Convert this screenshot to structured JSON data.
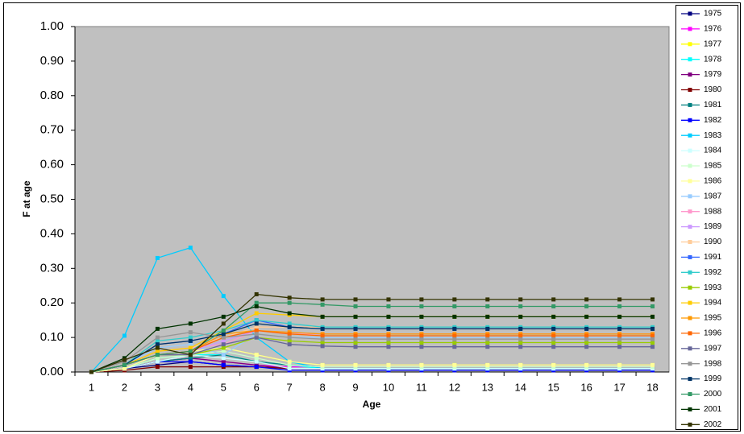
{
  "chart_data": {
    "type": "line",
    "x_label": "Age",
    "y_label": "F at age",
    "categories": [
      "1",
      "2",
      "3",
      "4",
      "5",
      "6",
      "7",
      "8",
      "9",
      "10",
      "11",
      "12",
      "13",
      "14",
      "15",
      "16",
      "17",
      "18"
    ],
    "ylim": [
      0,
      1
    ],
    "yticks": [
      {
        "value": 0,
        "label": "0.00"
      },
      {
        "value": 0.1,
        "label": "0.10"
      },
      {
        "value": 0.2,
        "label": "0.20"
      },
      {
        "value": 0.3,
        "label": "0.30"
      },
      {
        "value": 0.4,
        "label": "0.40"
      },
      {
        "value": 0.5,
        "label": "0.50"
      },
      {
        "value": 0.6,
        "label": "0.60"
      },
      {
        "value": 0.7,
        "label": "0.70"
      },
      {
        "value": 0.8,
        "label": "0.80"
      },
      {
        "value": 0.9,
        "label": "0.90"
      },
      {
        "value": 1,
        "label": "1.00"
      }
    ],
    "grid": false,
    "legend": "right",
    "series": [
      {
        "name": "1975",
        "color": "#000080",
        "values": [
          0,
          0.01,
          0.02,
          0.03,
          0.02,
          0.015,
          0.01,
          0.01,
          0.01,
          0.01,
          0.01,
          0.01,
          0.01,
          0.01,
          0.01,
          0.01,
          0.01,
          0.01
        ]
      },
      {
        "name": "1976",
        "color": "#ff00ff",
        "values": [
          0,
          0.01,
          0.03,
          0.04,
          0.03,
          0.02,
          0.015,
          0.015,
          0.015,
          0.015,
          0.015,
          0.015,
          0.015,
          0.015,
          0.015,
          0.015,
          0.015,
          0.015
        ]
      },
      {
        "name": "1977",
        "color": "#ffff00",
        "values": [
          0,
          0.01,
          0.04,
          0.05,
          0.07,
          0.05,
          0.03,
          0.02,
          0.02,
          0.02,
          0.02,
          0.02,
          0.02,
          0.02,
          0.02,
          0.02,
          0.02,
          0.02
        ]
      },
      {
        "name": "1978",
        "color": "#00ffff",
        "values": [
          0,
          0.01,
          0.04,
          0.05,
          0.05,
          0.03,
          0.02,
          0.01,
          0.01,
          0.01,
          0.01,
          0.01,
          0.01,
          0.01,
          0.01,
          0.01,
          0.01,
          0.01
        ]
      },
      {
        "name": "1979",
        "color": "#800080",
        "values": [
          0,
          0.01,
          0.03,
          0.04,
          0.03,
          0.02,
          0.01,
          0.01,
          0.01,
          0.01,
          0.01,
          0.01,
          0.01,
          0.01,
          0.01,
          0.01,
          0.01,
          0.01
        ]
      },
      {
        "name": "1980",
        "color": "#800000",
        "values": [
          0,
          0.005,
          0.015,
          0.015,
          0.015,
          0.015,
          0.01,
          0.01,
          0.01,
          0.01,
          0.01,
          0.01,
          0.01,
          0.01,
          0.01,
          0.01,
          0.01,
          0.01
        ]
      },
      {
        "name": "1981",
        "color": "#008080",
        "values": [
          0,
          0.01,
          0.03,
          0.04,
          0.05,
          0.03,
          0.02,
          0.015,
          0.015,
          0.015,
          0.015,
          0.015,
          0.015,
          0.015,
          0.015,
          0.015,
          0.015,
          0.015
        ]
      },
      {
        "name": "1982",
        "color": "#0000ff",
        "values": [
          0,
          0.01,
          0.03,
          0.03,
          0.02,
          0.015,
          0.005,
          0.005,
          0.005,
          0.005,
          0.005,
          0.005,
          0.005,
          0.005,
          0.005,
          0.005,
          0.005,
          0.005
        ]
      },
      {
        "name": "1983",
        "color": "#00ccff",
        "values": [
          0,
          0.105,
          0.33,
          0.36,
          0.22,
          0.1,
          0.03,
          0.01,
          0.01,
          0.01,
          0.01,
          0.01,
          0.01,
          0.01,
          0.01,
          0.01,
          0.01,
          0.01
        ]
      },
      {
        "name": "1984",
        "color": "#ccffff",
        "values": [
          0,
          0.01,
          0.03,
          0.05,
          0.04,
          0.03,
          0.01,
          0.01,
          0.01,
          0.01,
          0.01,
          0.01,
          0.01,
          0.01,
          0.01,
          0.01,
          0.01,
          0.01
        ]
      },
      {
        "name": "1985",
        "color": "#ccffcc",
        "values": [
          0,
          0.01,
          0.04,
          0.05,
          0.06,
          0.04,
          0.02,
          0.015,
          0.015,
          0.015,
          0.015,
          0.015,
          0.015,
          0.015,
          0.015,
          0.015,
          0.015,
          0.015
        ]
      },
      {
        "name": "1986",
        "color": "#ffff99",
        "values": [
          0,
          0.01,
          0.05,
          0.06,
          0.07,
          0.05,
          0.03,
          0.02,
          0.02,
          0.02,
          0.02,
          0.02,
          0.02,
          0.02,
          0.02,
          0.02,
          0.02,
          0.02
        ]
      },
      {
        "name": "1987",
        "color": "#99ccff",
        "values": [
          0,
          0.02,
          0.07,
          0.08,
          0.05,
          0.11,
          0.1,
          0.1,
          0.1,
          0.1,
          0.1,
          0.1,
          0.1,
          0.1,
          0.1,
          0.1,
          0.1,
          0.1
        ]
      },
      {
        "name": "1988",
        "color": "#ff99cc",
        "values": [
          0,
          0.02,
          0.06,
          0.07,
          0.08,
          0.12,
          0.11,
          0.11,
          0.11,
          0.11,
          0.11,
          0.11,
          0.11,
          0.11,
          0.11,
          0.11,
          0.11,
          0.11
        ]
      },
      {
        "name": "1989",
        "color": "#cc99ff",
        "values": [
          0,
          0.02,
          0.05,
          0.06,
          0.09,
          0.12,
          0.115,
          0.11,
          0.11,
          0.11,
          0.11,
          0.11,
          0.11,
          0.11,
          0.11,
          0.11,
          0.11,
          0.11
        ]
      },
      {
        "name": "1990",
        "color": "#ffcc99",
        "values": [
          0,
          0.02,
          0.06,
          0.07,
          0.1,
          0.13,
          0.13,
          0.13,
          0.13,
          0.13,
          0.13,
          0.13,
          0.13,
          0.13,
          0.13,
          0.13,
          0.13,
          0.13
        ]
      },
      {
        "name": "1991",
        "color": "#3366ff",
        "values": [
          0,
          0.02,
          0.08,
          0.09,
          0.11,
          0.15,
          0.13,
          0.125,
          0.125,
          0.125,
          0.125,
          0.125,
          0.125,
          0.125,
          0.125,
          0.125,
          0.125,
          0.125
        ]
      },
      {
        "name": "1992",
        "color": "#33cccc",
        "values": [
          0,
          0.02,
          0.09,
          0.1,
          0.12,
          0.15,
          0.14,
          0.13,
          0.13,
          0.13,
          0.13,
          0.13,
          0.13,
          0.13,
          0.13,
          0.13,
          0.13,
          0.13
        ]
      },
      {
        "name": "1993",
        "color": "#99cc00",
        "values": [
          0,
          0.02,
          0.05,
          0.05,
          0.07,
          0.1,
          0.09,
          0.085,
          0.085,
          0.085,
          0.085,
          0.085,
          0.085,
          0.085,
          0.085,
          0.085,
          0.085,
          0.085
        ]
      },
      {
        "name": "1994",
        "color": "#ffcc00",
        "values": [
          0,
          0.02,
          0.06,
          0.07,
          0.12,
          0.17,
          0.165,
          0.16,
          0.16,
          0.16,
          0.16,
          0.16,
          0.16,
          0.16,
          0.16,
          0.16,
          0.16,
          0.16
        ]
      },
      {
        "name": "1995",
        "color": "#ff9900",
        "values": [
          0,
          0.02,
          0.05,
          0.06,
          0.11,
          0.12,
          0.115,
          0.11,
          0.11,
          0.11,
          0.11,
          0.11,
          0.11,
          0.11,
          0.11,
          0.11,
          0.11,
          0.11
        ]
      },
      {
        "name": "1996",
        "color": "#ff6600",
        "values": [
          0,
          0.02,
          0.05,
          0.06,
          0.1,
          0.12,
          0.11,
          0.105,
          0.105,
          0.105,
          0.105,
          0.105,
          0.105,
          0.105,
          0.105,
          0.105,
          0.105,
          0.105
        ]
      },
      {
        "name": "1997",
        "color": "#666699",
        "values": [
          0,
          0.02,
          0.05,
          0.05,
          0.08,
          0.1,
          0.08,
          0.075,
          0.073,
          0.073,
          0.073,
          0.073,
          0.073,
          0.073,
          0.073,
          0.073,
          0.073,
          0.073
        ]
      },
      {
        "name": "1998",
        "color": "#969696",
        "values": [
          0,
          0.03,
          0.1,
          0.115,
          0.1,
          0.11,
          0.1,
          0.095,
          0.095,
          0.095,
          0.095,
          0.095,
          0.095,
          0.095,
          0.095,
          0.095,
          0.095,
          0.095
        ]
      },
      {
        "name": "1999",
        "color": "#003366",
        "values": [
          0,
          0.02,
          0.08,
          0.09,
          0.11,
          0.14,
          0.13,
          0.125,
          0.125,
          0.125,
          0.125,
          0.125,
          0.125,
          0.125,
          0.125,
          0.125,
          0.125,
          0.125
        ]
      },
      {
        "name": "2000",
        "color": "#339966",
        "values": [
          0,
          0.02,
          0.05,
          0.06,
          0.12,
          0.2,
          0.2,
          0.195,
          0.19,
          0.19,
          0.19,
          0.19,
          0.19,
          0.19,
          0.19,
          0.19,
          0.19,
          0.19
        ]
      },
      {
        "name": "2001",
        "color": "#003300",
        "values": [
          0,
          0.04,
          0.125,
          0.14,
          0.16,
          0.19,
          0.17,
          0.16,
          0.16,
          0.16,
          0.16,
          0.16,
          0.16,
          0.16,
          0.16,
          0.16,
          0.16,
          0.16
        ]
      },
      {
        "name": "2002",
        "color": "#333300",
        "values": [
          0,
          0.035,
          0.07,
          0.05,
          0.14,
          0.225,
          0.215,
          0.21,
          0.21,
          0.21,
          0.21,
          0.21,
          0.21,
          0.21,
          0.21,
          0.21,
          0.21,
          0.21
        ]
      }
    ]
  }
}
